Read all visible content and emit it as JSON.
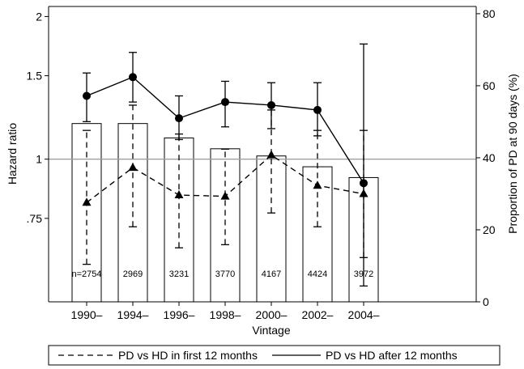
{
  "chart_data": {
    "type": "bar+line",
    "xlabel": "Vintage",
    "ylabel_left": "Hazard ratio",
    "ylabel_right": "Proportion of PD at 90 days (%)",
    "categories": [
      "1990–",
      "1994–",
      "1996–",
      "1998–",
      "2000–",
      "2002–",
      "2004–"
    ],
    "left_axis": {
      "scale": "log",
      "ticks": [
        0.75,
        1,
        1.5,
        2
      ],
      "tick_labels": [
        ".75",
        "1",
        "1.5",
        "2"
      ],
      "range": [
        0.5,
        2.1
      ],
      "reference_line": 1
    },
    "right_axis": {
      "ticks": [
        0,
        20,
        40,
        60,
        80
      ],
      "tick_labels": [
        "0",
        "20",
        "40",
        "60",
        "80"
      ],
      "range": [
        0,
        82
      ]
    },
    "bars": {
      "name": "Proportion of PD at 90 days (%)",
      "values": [
        49.5,
        49.5,
        45.5,
        42.5,
        40.5,
        37.5,
        34.5
      ],
      "labels": [
        "n=2754",
        "2969",
        "3231",
        "3770",
        "4167",
        "4424",
        "3972"
      ]
    },
    "series": [
      {
        "name": "PD vs HD in first 12 months",
        "style": "dashed",
        "marker": "triangle",
        "values": [
          0.81,
          0.96,
          0.84,
          0.835,
          1.02,
          0.88,
          0.845
        ],
        "ci_low": [
          0.6,
          0.72,
          0.65,
          0.66,
          0.77,
          0.72,
          0.62
        ],
        "ci_high": [
          1.15,
          1.3,
          1.13,
          1.05,
          1.27,
          1.15,
          1.15
        ]
      },
      {
        "name": "PD vs HD after 12 months",
        "style": "solid",
        "marker": "circle",
        "values": [
          1.36,
          1.49,
          1.22,
          1.32,
          1.3,
          1.27,
          0.89
        ],
        "ci_low": [
          1.2,
          1.32,
          1.1,
          1.17,
          1.16,
          1.12,
          0.54
        ],
        "ci_high": [
          1.52,
          1.68,
          1.36,
          1.46,
          1.45,
          1.45,
          1.75
        ]
      }
    ],
    "legend": {
      "placement": "bottom",
      "entries": [
        "PD vs HD in first 12 months",
        "PD vs HD after 12 months"
      ]
    },
    "grid": false
  }
}
